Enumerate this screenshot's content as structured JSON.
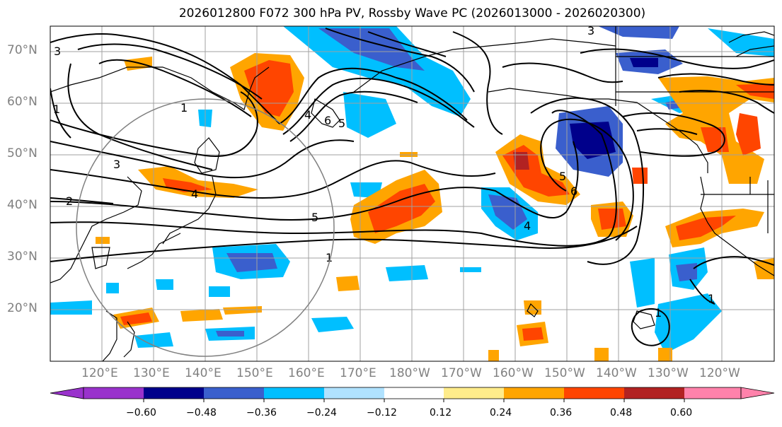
{
  "title": "2026012800 F072 300 hPa PV, Rossby Wave PC (2026013000 - 2026020300)",
  "lat_labels": [
    "70°N",
    "60°N",
    "50°N",
    "40°N",
    "30°N",
    "20°N"
  ],
  "lon_labels": [
    "120°E",
    "130°E",
    "140°E",
    "150°E",
    "160°E",
    "170°E",
    "180°W",
    "170°W",
    "160°W",
    "150°W",
    "140°W",
    "130°W",
    "120°W"
  ],
  "colorbar": {
    "ticks": [
      "−0.60",
      "−0.48",
      "−0.36",
      "−0.24",
      "−0.12",
      "0.12",
      "0.24",
      "0.36",
      "0.48",
      "0.60"
    ],
    "colors": [
      "#9932cc",
      "#00008b",
      "#3a5fcd",
      "#00bfff",
      "#b0e2ff",
      "#ffffff",
      "#ffec8b",
      "#ffa500",
      "#ff4500",
      "#b22222",
      "#ff82ab"
    ]
  },
  "contour_labels": [
    "1",
    "2",
    "3",
    "4",
    "5",
    "6",
    "1",
    "3",
    "4",
    "5",
    "6",
    "5",
    "4",
    "3",
    "1",
    "1",
    "1"
  ]
}
